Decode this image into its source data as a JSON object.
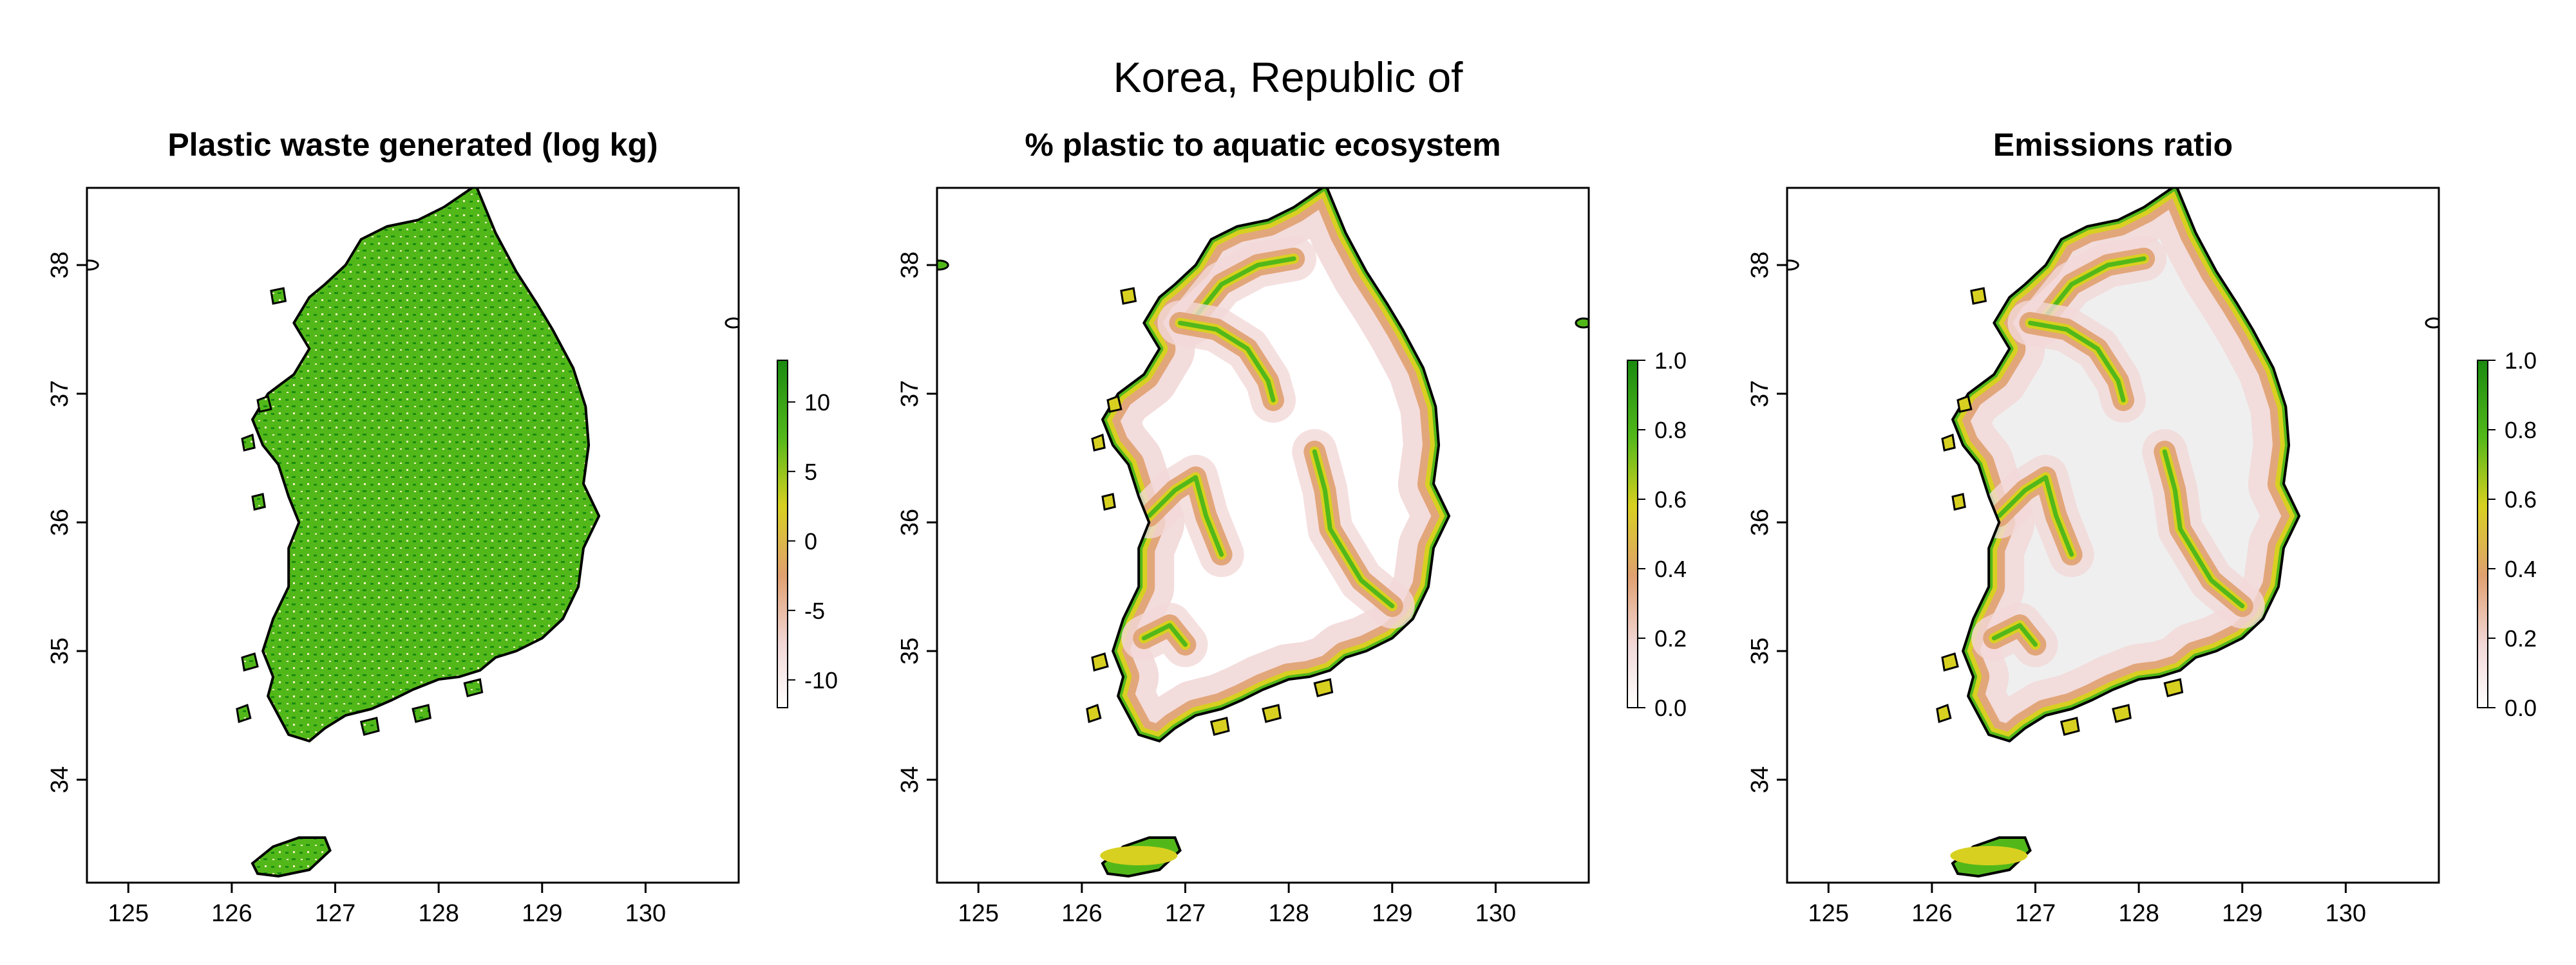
{
  "figure": {
    "title": "Korea, Republic of"
  },
  "panels": [
    {
      "title": "Plastic waste generated (log kg)",
      "legend_ticks": [
        "10",
        "5",
        "0",
        "-5",
        "-10"
      ],
      "legend_values": [
        10,
        5,
        0,
        -5,
        -10
      ],
      "legend_range": [
        -12,
        13
      ],
      "colormap": "pink-orange-yellow-green",
      "land_color": "#52b81a"
    },
    {
      "title": "% plastic to aquatic ecosystem",
      "legend_ticks": [
        "1.0",
        "0.8",
        "0.6",
        "0.4",
        "0.2",
        "0.0"
      ],
      "legend_values": [
        1.0,
        0.8,
        0.6,
        0.4,
        0.2,
        0.0
      ],
      "legend_range": [
        0,
        1
      ],
      "colormap": "pink-orange-yellow-green",
      "land_color": "#ffffff"
    },
    {
      "title": "Emissions ratio",
      "legend_ticks": [
        "1.0",
        "0.8",
        "0.6",
        "0.4",
        "0.2",
        "0.0"
      ],
      "legend_values": [
        1.0,
        0.8,
        0.6,
        0.4,
        0.2,
        0.0
      ],
      "legend_range": [
        0,
        1
      ],
      "colormap": "pink-orange-yellow-green",
      "land_color": "#efefef"
    }
  ],
  "axes": {
    "x_ticks": [
      "125",
      "126",
      "127",
      "128",
      "129",
      "130"
    ],
    "x_values": [
      125,
      126,
      127,
      128,
      129,
      130
    ],
    "y_ticks": [
      "34",
      "35",
      "36",
      "37",
      "38"
    ],
    "y_values": [
      34,
      35,
      36,
      37,
      38
    ],
    "xlim": [
      124.6,
      130.9
    ],
    "ylim": [
      33.2,
      38.6
    ]
  },
  "colors": {
    "green_dark": "#1a8a10",
    "green": "#52b81a",
    "yellow": "#d8d020",
    "orange": "#e0a070",
    "pink": "#f2d8d8",
    "white": "#ffffff",
    "outline": "#000000"
  }
}
